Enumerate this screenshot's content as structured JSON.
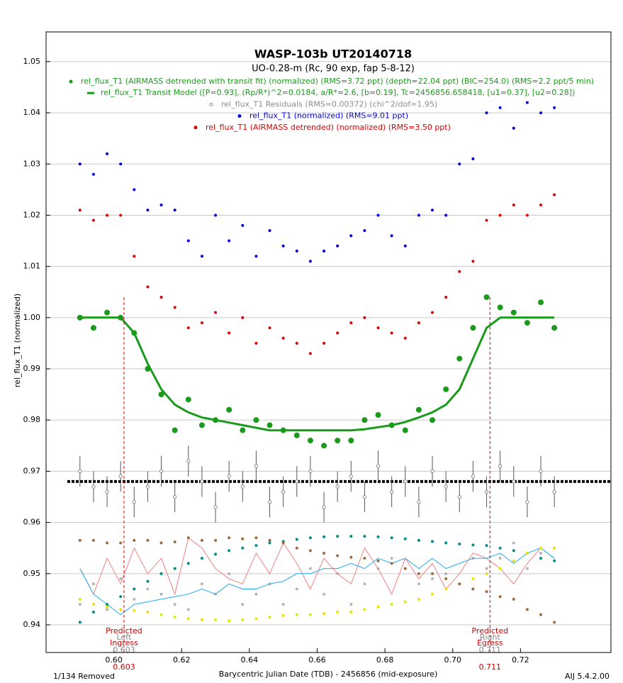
{
  "chart_data": {
    "type": "scatter",
    "title": "WASP-103b UT20140718",
    "subtitle": "UO-0.28-m (Rc, 90 exp, fap 5-8-12)",
    "xlabel": "Barycentric Julian Date (TDB) - 2456856 (mid-exposure)",
    "ylabel": "rel_flux_T1 (normalized)",
    "footer_left": "1/134 Removed",
    "footer_right": "AIJ 5.4.2.00",
    "xlim": [
      0.58,
      0.7467
    ],
    "ylim": [
      0.9346,
      1.0558
    ],
    "xticks": [
      {
        "value": 0.6,
        "label": "0.60"
      },
      0.62,
      0.64,
      0.66,
      0.68,
      {
        "value": 0.7,
        "label": "0.70"
      },
      0.72
    ],
    "yticks": [
      0.94,
      0.95,
      0.96,
      0.97,
      0.98,
      0.99,
      {
        "value": 1,
        "label": "1.00"
      },
      1.01,
      1.02,
      1.03,
      1.04,
      1.05
    ],
    "grid": true,
    "x": [
      0.59,
      0.594,
      0.598,
      0.602,
      0.606,
      0.61,
      0.614,
      0.618,
      0.622,
      0.626,
      0.63,
      0.634,
      0.638,
      0.642,
      0.646,
      0.65,
      0.654,
      0.658,
      0.662,
      0.666,
      0.67,
      0.674,
      0.678,
      0.682,
      0.686,
      0.69,
      0.694,
      0.698,
      0.702,
      0.706,
      0.71,
      0.714,
      0.718,
      0.722,
      0.726,
      0.73
    ],
    "residual_baseline": 0.968,
    "annotations": [
      {
        "x": 0.603,
        "top": "Predicted",
        "bottom": "Ingress",
        "side": "Left"
      },
      {
        "x": 0.711,
        "top": "Predicted",
        "bottom": "Egress",
        "side": "Right"
      }
    ],
    "series": [
      {
        "name": "rel_flux_T1 (AIRMASS detrended with transit fit) (normalized) (RMS=3.72 ppt) (depth=22.04 ppt) (BIC=254.0) (RMS=2.2 ppt/5 min)",
        "color": "#1a9a1a",
        "marker": "big",
        "values": [
          1.0,
          0.998,
          1.001,
          1.0,
          0.997,
          0.99,
          0.985,
          0.978,
          0.984,
          0.979,
          0.98,
          0.982,
          0.978,
          0.98,
          0.979,
          0.978,
          0.977,
          0.976,
          0.975,
          0.976,
          0.976,
          0.98,
          0.981,
          0.979,
          0.978,
          0.982,
          0.98,
          0.986,
          0.992,
          0.998,
          1.004,
          1.002,
          1.001,
          0.999,
          1.003,
          0.998
        ]
      },
      {
        "name": "rel_flux_T1 Transit Model ([P=0.93], (Rp/R*)^2=0.0184, a/R*=2.6, [b=0.19], Tc=2456856.658418, [u1=0.37], [u2=0.28])",
        "color": "#1a9a1a",
        "marker": "line",
        "values": [
          1.0,
          1.0,
          1.0,
          1.0,
          0.997,
          0.991,
          0.986,
          0.983,
          0.9815,
          0.9805,
          0.98,
          0.9795,
          0.979,
          0.9785,
          0.978,
          0.978,
          0.978,
          0.978,
          0.978,
          0.978,
          0.978,
          0.9782,
          0.9786,
          0.979,
          0.9796,
          0.9805,
          0.9815,
          0.983,
          0.986,
          0.992,
          0.998,
          1.0,
          1.0,
          1.0,
          1.0,
          1.0
        ]
      },
      {
        "name": "rel_flux_T1 Residuals (RMS=0.00372) (chi^2/dof=1.95)",
        "color": "#8c8c8c",
        "marker": "ring",
        "values": [
          0.97,
          0.967,
          0.966,
          0.969,
          0.964,
          0.967,
          0.97,
          0.965,
          0.972,
          0.968,
          0.963,
          0.969,
          0.967,
          0.971,
          0.964,
          0.966,
          0.968,
          0.97,
          0.963,
          0.967,
          0.969,
          0.965,
          0.971,
          0.966,
          0.968,
          0.964,
          0.97,
          0.967,
          0.965,
          0.969,
          0.966,
          0.971,
          0.968,
          0.964,
          0.97,
          0.966
        ],
        "errors": [
          0.003,
          0.003,
          0.003,
          0.003,
          0.003,
          0.003,
          0.003,
          0.003,
          0.003,
          0.003,
          0.003,
          0.003,
          0.003,
          0.003,
          0.003,
          0.003,
          0.003,
          0.003,
          0.003,
          0.003,
          0.003,
          0.003,
          0.003,
          0.003,
          0.003,
          0.003,
          0.003,
          0.003,
          0.003,
          0.003,
          0.003,
          0.003,
          0.003,
          0.003,
          0.003,
          0.003
        ]
      },
      {
        "name": "rel_flux_T1 (normalized) (RMS=9.01 ppt)",
        "color": "#0000dd",
        "marker": "dot",
        "values": [
          1.03,
          1.028,
          1.032,
          1.03,
          1.025,
          1.021,
          1.022,
          1.021,
          1.015,
          1.012,
          1.02,
          1.015,
          1.018,
          1.012,
          1.017,
          1.014,
          1.013,
          1.011,
          1.013,
          1.014,
          1.016,
          1.017,
          1.02,
          1.016,
          1.014,
          1.02,
          1.021,
          1.02,
          1.03,
          1.031,
          1.04,
          1.041,
          1.037,
          1.042,
          1.04,
          1.041
        ]
      },
      {
        "name": "rel_flux_T1 (AIRMASS detrended) (normalized) (RMS=3.50 ppt)",
        "color": "#dd0000",
        "marker": "dot",
        "values": [
          1.021,
          1.019,
          1.02,
          1.02,
          1.012,
          1.006,
          1.004,
          1.002,
          0.998,
          0.999,
          1.001,
          0.997,
          1.0,
          0.995,
          0.998,
          0.996,
          0.995,
          0.993,
          0.995,
          0.997,
          0.999,
          1.0,
          0.998,
          0.997,
          0.996,
          0.999,
          1.001,
          1.004,
          1.009,
          1.011,
          1.019,
          1.02,
          1.022,
          1.02,
          1.022,
          1.024
        ]
      },
      {
        "color": "#008b8b",
        "marker": "dot",
        "values": [
          0.9405,
          0.9425,
          0.944,
          0.9455,
          0.947,
          0.9485,
          0.95,
          0.951,
          0.952,
          0.953,
          0.9538,
          0.9545,
          0.955,
          0.9555,
          0.956,
          0.9563,
          0.9567,
          0.957,
          0.9572,
          0.9573,
          0.9573,
          0.9573,
          0.9572,
          0.957,
          0.9568,
          0.9565,
          0.9563,
          0.956,
          0.9558,
          0.9556,
          0.9555,
          0.955,
          0.9545,
          0.954,
          0.953,
          0.9525
        ]
      },
      {
        "color": "#e6e600",
        "marker": "dot",
        "values": [
          0.945,
          0.944,
          0.9435,
          0.943,
          0.9428,
          0.9425,
          0.942,
          0.9415,
          0.9412,
          0.941,
          0.941,
          0.9408,
          0.941,
          0.9412,
          0.9415,
          0.9418,
          0.942,
          0.942,
          0.9422,
          0.9425,
          0.9425,
          0.943,
          0.9435,
          0.944,
          0.9445,
          0.945,
          0.946,
          0.947,
          0.948,
          0.949,
          0.95,
          0.951,
          0.9525,
          0.954,
          0.955,
          0.955
        ]
      },
      {
        "color": "#9a6a40",
        "marker": "dot",
        "values": [
          0.9565,
          0.9565,
          0.956,
          0.956,
          0.9565,
          0.9565,
          0.956,
          0.9562,
          0.957,
          0.9565,
          0.9565,
          0.957,
          0.9568,
          0.957,
          0.9565,
          0.956,
          0.955,
          0.9545,
          0.954,
          0.9535,
          0.9532,
          0.953,
          0.9525,
          0.952,
          0.951,
          0.95,
          0.95,
          0.949,
          0.948,
          0.947,
          0.9465,
          0.9455,
          0.945,
          0.943,
          0.942,
          0.9405
        ]
      },
      {
        "color": "#f08080",
        "marker": "line",
        "values": [
          0.951,
          0.946,
          0.953,
          0.948,
          0.955,
          0.95,
          0.953,
          0.946,
          0.957,
          0.955,
          0.951,
          0.949,
          0.948,
          0.954,
          0.95,
          0.956,
          0.952,
          0.947,
          0.953,
          0.95,
          0.948,
          0.955,
          0.951,
          0.946,
          0.953,
          0.949,
          0.952,
          0.947,
          0.95,
          0.954,
          0.953,
          0.951,
          0.948,
          0.952,
          0.955,
          0.953
        ]
      },
      {
        "color": "#1eaaf0",
        "marker": "line",
        "values": [
          0.951,
          0.946,
          0.944,
          0.942,
          0.944,
          0.9445,
          0.945,
          0.9455,
          0.946,
          0.947,
          0.946,
          0.948,
          0.947,
          0.947,
          0.948,
          0.9485,
          0.95,
          0.95,
          0.951,
          0.951,
          0.952,
          0.951,
          0.953,
          0.952,
          0.953,
          0.951,
          0.953,
          0.951,
          0.952,
          0.953,
          0.953,
          0.954,
          0.952,
          0.954,
          0.955,
          0.953
        ]
      },
      {
        "color": "#b4b4b4",
        "marker": "dot",
        "values": [
          0.944,
          0.948,
          0.943,
          0.949,
          0.945,
          0.947,
          0.946,
          0.944,
          0.943,
          0.948,
          0.946,
          0.95,
          0.944,
          0.946,
          0.948,
          0.944,
          0.947,
          0.951,
          0.946,
          0.95,
          0.944,
          0.948,
          0.951,
          0.953,
          0.951,
          0.948,
          0.949,
          0.95,
          0.948,
          0.953,
          0.951,
          0.953,
          0.956,
          0.951,
          0.954,
          0.955
        ]
      }
    ]
  }
}
